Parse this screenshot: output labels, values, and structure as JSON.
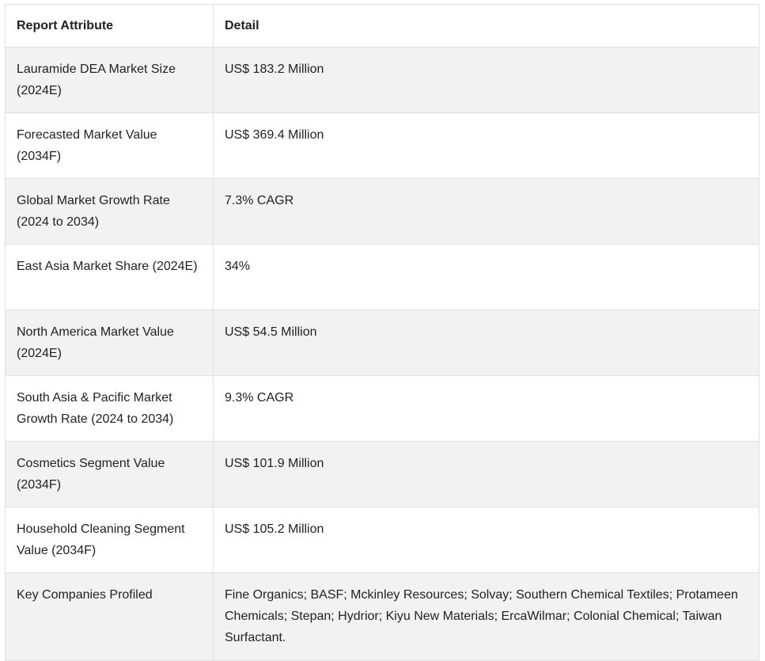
{
  "table": {
    "headers": [
      "Report Attribute",
      "Detail"
    ],
    "rows": [
      [
        "Lauramide DEA Market Size (2024E)",
        "US$ 183.2 Million"
      ],
      [
        "Forecasted Market Value (2034F)",
        "US$ 369.4 Million"
      ],
      [
        "Global Market Growth Rate (2024 to 2034)",
        "7.3% CAGR"
      ],
      [
        "East Asia Market Share (2024E)",
        "34%"
      ],
      [
        "North America Market Value (2024E)",
        "US$ 54.5 Million"
      ],
      [
        "South Asia & Pacific Market Growth Rate (2024 to 2034)",
        "9.3% CAGR"
      ],
      [
        "Cosmetics Segment Value (2034F)",
        "US$ 101.9 Million"
      ],
      [
        "Household Cleaning Segment Value (2034F)",
        "US$ 105.2 Million"
      ],
      [
        "Key Companies Profiled",
        "Fine Organics; BASF; Mckinley Resources; Solvay; Southern Chemical Textiles; Protameen Chemicals; Stepan; Hydrior; Kiyu New Materials; ErcaWilmar; Colonial Chemical; Taiwan Surfactant."
      ]
    ]
  }
}
